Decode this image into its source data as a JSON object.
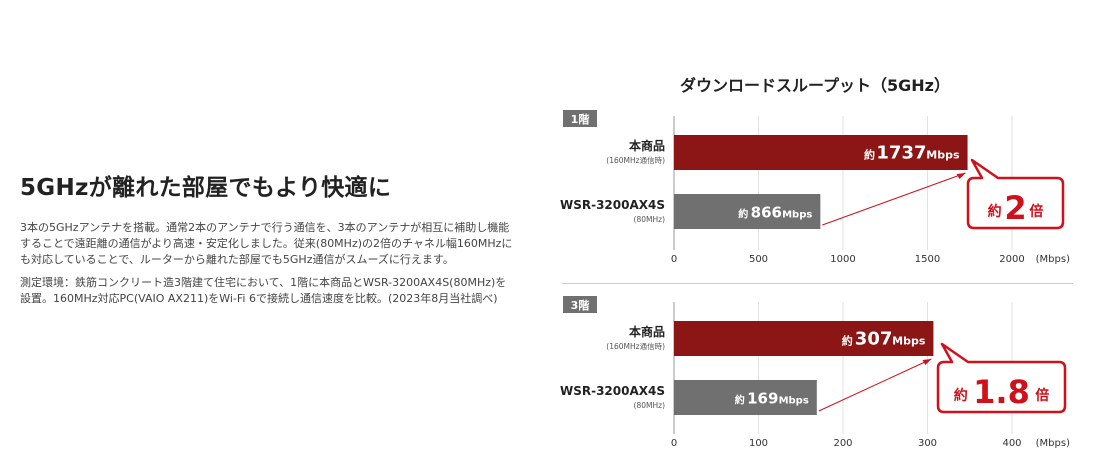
{
  "left": {
    "heading": "5GHzが離れた部屋でもより快適に",
    "paragraph1": "3本の5GHzアンテナを搭載。通常2本のアンテナで行う通信を、3本のアンテナが相互に補助し機能することで遠距離の通信がより高速・安定化しました。従来(80MHz)の2倍のチャネル幅160MHzにも対応していることで、ルーターから離れた部屋でも5GHz通信がスムーズに行えます。",
    "paragraph2": "測定環境：鉄筋コンクリート造3階建て住宅において、1階に本商品とWSR-3200AX4S(80MHz)を設置。160MHz対応PC(VAIO AX211)をWi-Fi 6で接続し通信速度を比較。(2023年8月当社調べ)"
  },
  "chart_title": "ダウンロードスループット（5GHz）",
  "colors": {
    "primary": "#8c1515",
    "secondary": "#707070",
    "accent": "#d0111b"
  },
  "chart_data": [
    {
      "type": "bar",
      "orientation": "horizontal",
      "floor_label": "1階",
      "categories": [
        {
          "name": "本商品",
          "sub": "(160MHz通信時)"
        },
        {
          "name": "WSR-3200AX4S",
          "sub": "(80MHz)"
        }
      ],
      "values": [
        1737,
        866
      ],
      "value_prefix": "約",
      "unit": "Mbps",
      "xlim": [
        0,
        2000
      ],
      "ticks": [
        0,
        500,
        1000,
        1500,
        2000
      ],
      "xlabel": "(Mbps)",
      "callout": {
        "prefix": "約",
        "value": "2",
        "suffix": "倍"
      }
    },
    {
      "type": "bar",
      "orientation": "horizontal",
      "floor_label": "3階",
      "categories": [
        {
          "name": "本商品",
          "sub": "(160MHz通信時)"
        },
        {
          "name": "WSR-3200AX4S",
          "sub": "(80MHz)"
        }
      ],
      "values": [
        307,
        169
      ],
      "value_prefix": "約",
      "unit": "Mbps",
      "xlim": [
        0,
        400
      ],
      "ticks": [
        0,
        100,
        200,
        300,
        400
      ],
      "xlabel": "(Mbps)",
      "callout": {
        "prefix": "約",
        "value": "1.8",
        "suffix": "倍"
      }
    }
  ]
}
